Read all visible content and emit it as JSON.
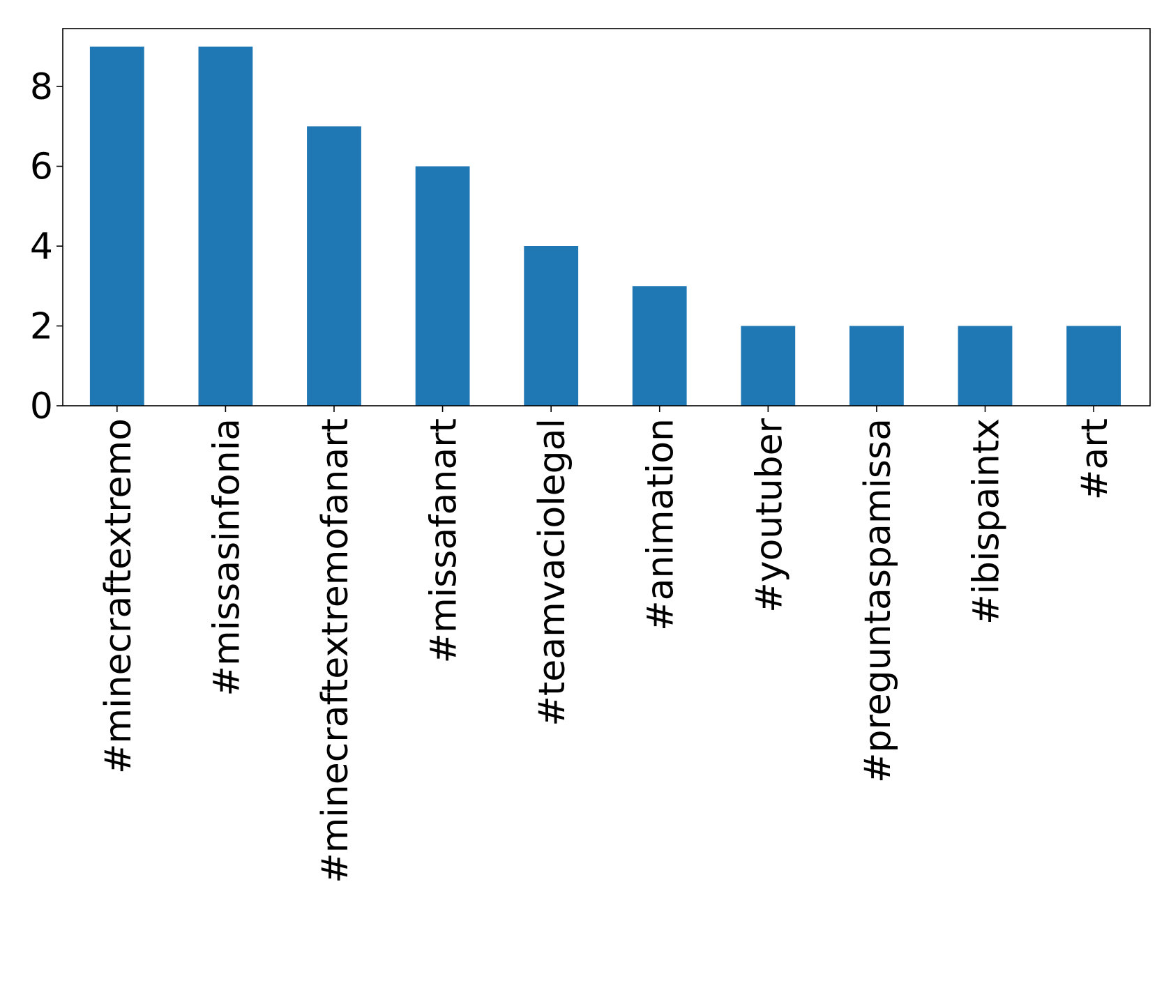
{
  "chart_data": {
    "type": "bar",
    "categories": [
      "#minecraftextremo",
      "#missasinfonia",
      "#minecraftextremofanart",
      "#missafanart",
      "#teamvaciolegal",
      "#animation",
      "#youtuber",
      "#preguntaspamissa",
      "#ibispaintx",
      "#art"
    ],
    "values": [
      9,
      9,
      7,
      6,
      4,
      3,
      2,
      2,
      2,
      2
    ],
    "title": "",
    "xlabel": "",
    "ylabel": "",
    "ylim": [
      0,
      9.45
    ],
    "yticks": [
      0,
      2,
      4,
      6,
      8
    ],
    "grid": false,
    "legend": "none",
    "bar_color": "#1f77b4",
    "x_label_rotation": -90
  }
}
